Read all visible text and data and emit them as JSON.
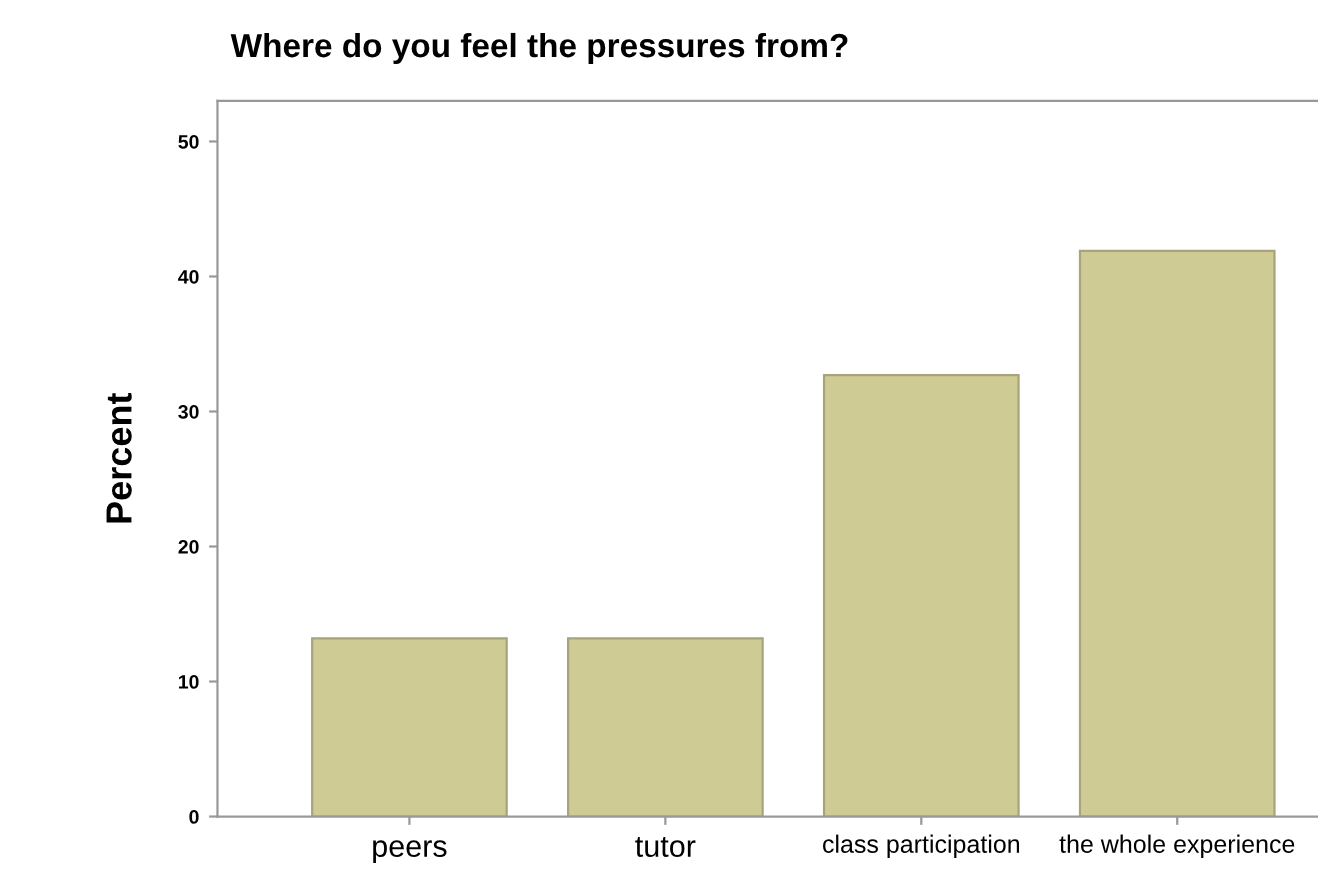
{
  "chart_data": {
    "type": "bar",
    "title": "Where do you feel the pressures from?",
    "ylabel": "Percent",
    "categories": [
      "peers",
      "tutor",
      "class participation",
      "the whole experience"
    ],
    "values": [
      13.2,
      13.2,
      32.7,
      41.9
    ],
    "color": "#cfcb94",
    "ylim": [
      0,
      53
    ],
    "yticks": [
      0,
      10,
      20,
      30,
      40,
      50
    ],
    "grid": false
  }
}
